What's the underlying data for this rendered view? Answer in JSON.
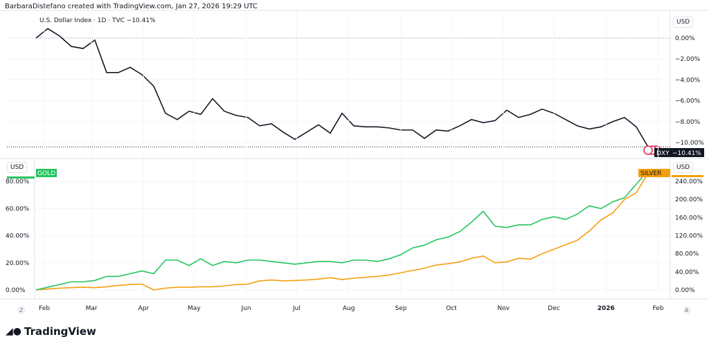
{
  "header": {
    "text": "BarbaraDistefano created with TradingView.com, Jan 27, 2026 19:29 UTC"
  },
  "top_pane": {
    "legend": "U.S. Dollar Index · 1D · TVC  −10.41%",
    "currency": "USD",
    "badge_symbol": "DXY",
    "badge_value": "−10.41%"
  },
  "bottom_pane": {
    "currency_left": "USD",
    "currency_right": "USD",
    "gold_label": "GOLD",
    "silver_label": "SILVER"
  },
  "logo": {
    "text": "TradingView"
  },
  "corner": {
    "left": "Z",
    "right": "A"
  },
  "colors": {
    "dxy": "#131722",
    "gold": "#22c55e",
    "silver": "#f59e0b"
  },
  "chart_data": [
    {
      "type": "line",
      "title": "U.S. Dollar Index · 1D · TVC",
      "ylabel": "",
      "ylim": [
        -10.5,
        1
      ],
      "yticks": [
        "0.00%",
        "−2.00%",
        "−4.00%",
        "−6.00%",
        "−8.00%",
        "−10.00%"
      ],
      "ytick_values": [
        0,
        -2,
        -4,
        -6,
        -8,
        -10
      ],
      "grid": true,
      "series": [
        {
          "name": "DXY",
          "values": [
            0,
            0.9,
            0.2,
            -0.8,
            -1.0,
            -0.2,
            -3.3,
            -3.3,
            -2.8,
            -3.5,
            -4.6,
            -7.2,
            -7.8,
            -7.0,
            -7.3,
            -5.8,
            -7.0,
            -7.4,
            -7.6,
            -8.4,
            -8.2,
            -9.0,
            -9.7,
            -9.0,
            -8.3,
            -9.1,
            -7.2,
            -8.4,
            -8.5,
            -8.5,
            -8.6,
            -8.8,
            -8.8,
            -9.6,
            -8.8,
            -8.9,
            -8.4,
            -7.8,
            -8.1,
            -7.9,
            -6.9,
            -7.6,
            -7.3,
            -6.8,
            -7.2,
            -7.8,
            -8.4,
            -8.7,
            -8.5,
            -8.0,
            -7.6,
            -8.5,
            -10.41
          ]
        }
      ]
    },
    {
      "type": "line",
      "ylim_left": [
        -5,
        90
      ],
      "ylim_right": [
        -10,
        265
      ],
      "yticks_left": [
        "80.00%",
        "60.00%",
        "40.00%",
        "20.00%",
        "0.00%"
      ],
      "ytick_values_left": [
        80,
        60,
        40,
        20,
        0
      ],
      "yticks_right": [
        "240.00%",
        "200.00%",
        "160.00%",
        "120.00%",
        "80.00%",
        "40.00%",
        "0.00%"
      ],
      "ytick_values_right": [
        240,
        200,
        160,
        120,
        80,
        40,
        0
      ],
      "xticks": [
        "Feb",
        "Mar",
        "Apr",
        "May",
        "Jun",
        "Jul",
        "Aug",
        "Sep",
        "Oct",
        "Nov",
        "Dec",
        "2026",
        "Feb"
      ],
      "xtick_dates": [
        "2025-02-01",
        "2025-03-01",
        "2025-04-01",
        "2025-05-01",
        "2025-06-01",
        "2025-07-01",
        "2025-08-01",
        "2025-09-01",
        "2025-10-01",
        "2025-11-01",
        "2025-12-01",
        "2026-01-01",
        "2026-02-01"
      ],
      "grid": true,
      "series": [
        {
          "name": "GOLD",
          "axis": "left",
          "values": [
            0,
            2,
            4,
            6,
            6,
            7,
            10,
            10,
            12,
            14,
            12,
            22,
            22,
            18,
            23,
            18,
            21,
            20,
            22,
            22,
            21,
            20,
            19,
            20,
            21,
            21,
            20,
            22,
            22,
            21,
            23,
            26,
            31,
            33,
            37,
            39,
            43,
            50,
            58,
            47,
            46,
            48,
            48,
            52,
            54,
            52,
            56,
            62,
            60,
            65,
            68,
            78,
            88
          ]
        },
        {
          "name": "SILVER",
          "axis": "right",
          "values": [
            0,
            2,
            4,
            5,
            6,
            5,
            7,
            10,
            12,
            13,
            0,
            4,
            6,
            6,
            7,
            7,
            9,
            12,
            13,
            20,
            22,
            20,
            21,
            22,
            24,
            27,
            23,
            26,
            28,
            30,
            33,
            38,
            43,
            48,
            55,
            58,
            62,
            70,
            75,
            60,
            62,
            70,
            68,
            80,
            90,
            100,
            110,
            130,
            155,
            170,
            200,
            215,
            258
          ]
        }
      ]
    }
  ],
  "dates": [
    "2025-01-27",
    "2025-02-03",
    "2025-02-10",
    "2025-02-17",
    "2025-02-24",
    "2025-03-03",
    "2025-03-10",
    "2025-03-17",
    "2025-03-24",
    "2025-03-31",
    "2025-04-07",
    "2025-04-14",
    "2025-04-21",
    "2025-04-28",
    "2025-05-05",
    "2025-05-12",
    "2025-05-19",
    "2025-05-26",
    "2025-06-02",
    "2025-06-09",
    "2025-06-16",
    "2025-06-23",
    "2025-06-30",
    "2025-07-07",
    "2025-07-14",
    "2025-07-21",
    "2025-07-28",
    "2025-08-04",
    "2025-08-11",
    "2025-08-18",
    "2025-08-25",
    "2025-09-01",
    "2025-09-08",
    "2025-09-15",
    "2025-09-22",
    "2025-09-29",
    "2025-10-06",
    "2025-10-13",
    "2025-10-20",
    "2025-10-27",
    "2025-11-03",
    "2025-11-10",
    "2025-11-17",
    "2025-11-24",
    "2025-12-01",
    "2025-12-08",
    "2025-12-15",
    "2025-12-22",
    "2025-12-29",
    "2026-01-05",
    "2026-01-12",
    "2026-01-19",
    "2026-01-26"
  ]
}
